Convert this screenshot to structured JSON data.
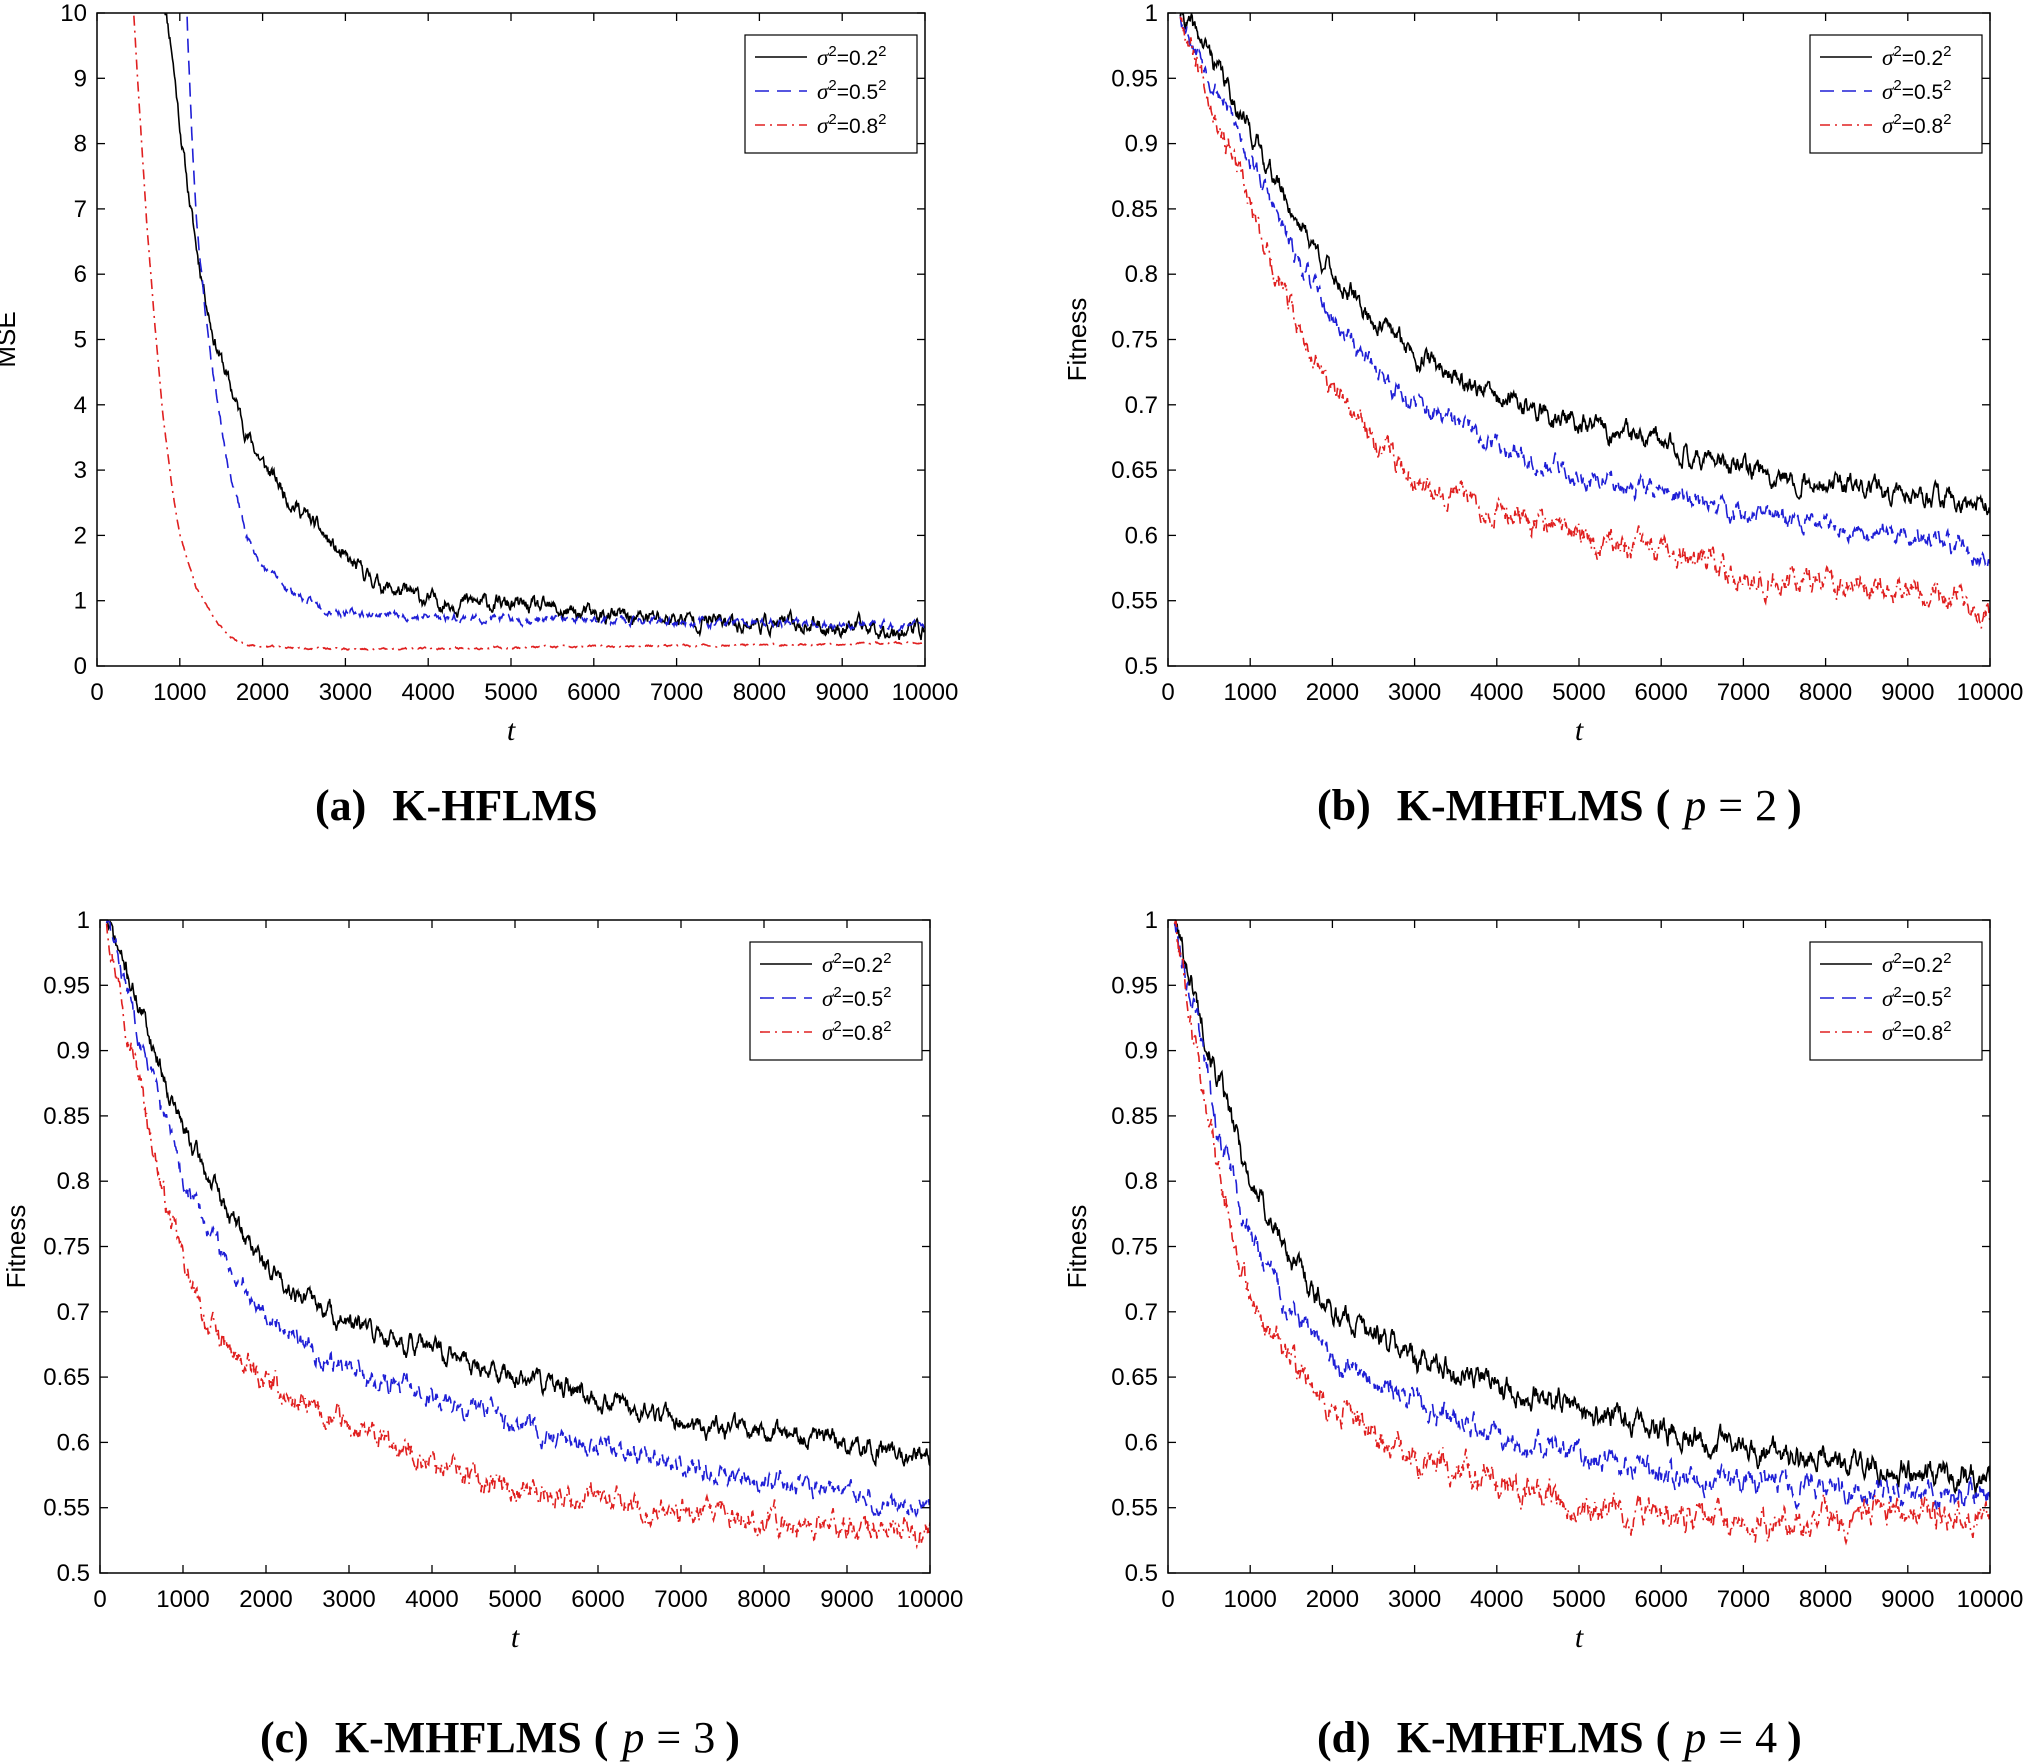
{
  "figure": {
    "legend_prefix": "σ",
    "legend_sup": "2",
    "legend_eq": "=",
    "sup2": "2"
  },
  "chart_data": [
    {
      "id": "a",
      "type": "line",
      "caption": {
        "label": "(a)",
        "name": "K-HFLMS",
        "p_var": "",
        "p_eq": "",
        "p_value": "",
        "open_paren": "",
        "close_paren": ""
      },
      "xlabel": "t",
      "ylabel": "MSE",
      "xlim": [
        0,
        10000
      ],
      "ylim": [
        0,
        10
      ],
      "xticks": [
        0,
        1000,
        2000,
        3000,
        4000,
        5000,
        6000,
        7000,
        8000,
        9000,
        10000
      ],
      "xtick_labels": [
        "0",
        "1000",
        "2000",
        "3000",
        "4000",
        "5000",
        "6000",
        "7000",
        "8000",
        "9000",
        "10000"
      ],
      "yticks": [
        0,
        1,
        2,
        3,
        4,
        5,
        6,
        7,
        8,
        9,
        10
      ],
      "ytick_labels": [
        "0",
        "1",
        "2",
        "3",
        "4",
        "5",
        "6",
        "7",
        "8",
        "9",
        "10"
      ],
      "legend_position": "top-right",
      "series": [
        {
          "name": "σ²=0.2²",
          "value_label": "0.2",
          "color": "#000000",
          "dash": "",
          "noise": 0.08,
          "seed": 11,
          "x": [
            800,
            900,
            1000,
            1100,
            1200,
            1400,
            1600,
            1800,
            2000,
            2300,
            2600,
            3000,
            3500,
            4000,
            4500,
            5000,
            6000,
            7000,
            8000,
            9000,
            10000
          ],
          "y": [
            10.3,
            9.5,
            8.3,
            7.3,
            6.4,
            5.1,
            4.3,
            3.6,
            3.1,
            2.6,
            2.2,
            1.6,
            1.2,
            1.0,
            0.97,
            0.93,
            0.77,
            0.72,
            0.65,
            0.6,
            0.55
          ]
        },
        {
          "name": "σ²=0.5²",
          "value_label": "0.5",
          "color": "#1f1fd6",
          "dash": "14 8",
          "noise": 0.04,
          "seed": 23,
          "x": [
            1080,
            1100,
            1150,
            1200,
            1300,
            1400,
            1500,
            1600,
            1800,
            2000,
            2300,
            2600,
            3000,
            4000,
            5000,
            6000,
            7000,
            8000,
            9000,
            10000
          ],
          "y": [
            10.3,
            9.5,
            8.0,
            6.9,
            5.5,
            4.5,
            3.7,
            3.0,
            2.0,
            1.5,
            1.2,
            0.95,
            0.82,
            0.75,
            0.72,
            0.7,
            0.68,
            0.65,
            0.63,
            0.62
          ]
        },
        {
          "name": "σ²=0.8²",
          "value_label": "0.8",
          "color": "#e02020",
          "dash": "10 5 2 5",
          "noise": 0.01,
          "seed": 37,
          "x": [
            430,
            500,
            600,
            700,
            800,
            900,
            1000,
            1200,
            1400,
            1600,
            1800,
            2000,
            2500,
            3000,
            3500,
            4000,
            5000,
            6000,
            7000,
            8000,
            9000,
            10000
          ],
          "y": [
            10.3,
            8.8,
            6.8,
            5.2,
            3.8,
            2.8,
            2.0,
            1.2,
            0.75,
            0.45,
            0.32,
            0.3,
            0.27,
            0.26,
            0.25,
            0.27,
            0.28,
            0.3,
            0.31,
            0.32,
            0.34,
            0.36
          ]
        }
      ]
    },
    {
      "id": "b",
      "type": "line",
      "caption": {
        "label": "(b)",
        "name": "K-MHFLMS",
        "p_var": "p",
        "p_eq": "=",
        "p_value": "2",
        "open_paren": "(",
        "close_paren": ")"
      },
      "xlabel": "t",
      "ylabel": "Fitness",
      "xlim": [
        0,
        10000
      ],
      "ylim": [
        0.5,
        1
      ],
      "xticks": [
        0,
        1000,
        2000,
        3000,
        4000,
        5000,
        6000,
        7000,
        8000,
        9000,
        10000
      ],
      "xtick_labels": [
        "0",
        "1000",
        "2000",
        "3000",
        "4000",
        "5000",
        "6000",
        "7000",
        "8000",
        "9000",
        "10000"
      ],
      "yticks": [
        0.5,
        0.55,
        0.6,
        0.65,
        0.7,
        0.75,
        0.8,
        0.85,
        0.9,
        0.95,
        1
      ],
      "ytick_labels": [
        "0.5",
        "0.55",
        "0.6",
        "0.65",
        "0.7",
        "0.75",
        "0.8",
        "0.85",
        "0.9",
        "0.95",
        "1"
      ],
      "legend_position": "top-right",
      "series": [
        {
          "name": "σ²=0.2²",
          "value_label": "0.2",
          "color": "#000000",
          "dash": "",
          "noise": 0.005,
          "seed": 41,
          "x": [
            150,
            500,
            1000,
            1500,
            2000,
            2500,
            3000,
            4000,
            5000,
            6000,
            7000,
            8000,
            9000,
            10000
          ],
          "y": [
            1.0,
            0.97,
            0.91,
            0.85,
            0.8,
            0.765,
            0.74,
            0.705,
            0.685,
            0.67,
            0.65,
            0.64,
            0.63,
            0.625
          ]
        },
        {
          "name": "σ²=0.5²",
          "value_label": "0.5",
          "color": "#1f1fd6",
          "dash": "14 8",
          "noise": 0.005,
          "seed": 53,
          "x": [
            150,
            500,
            1000,
            1500,
            2000,
            2500,
            3000,
            4000,
            5000,
            6000,
            7000,
            8000,
            9000,
            10000
          ],
          "y": [
            1.0,
            0.955,
            0.89,
            0.82,
            0.765,
            0.73,
            0.7,
            0.67,
            0.645,
            0.635,
            0.615,
            0.61,
            0.6,
            0.585
          ]
        },
        {
          "name": "σ²=0.8²",
          "value_label": "0.8",
          "color": "#e02020",
          "dash": "10 5 2 5",
          "noise": 0.006,
          "seed": 67,
          "x": [
            150,
            500,
            1000,
            1500,
            2000,
            2500,
            3000,
            4000,
            5000,
            6000,
            7000,
            8000,
            9000,
            10000
          ],
          "y": [
            1.0,
            0.94,
            0.85,
            0.77,
            0.71,
            0.675,
            0.645,
            0.62,
            0.6,
            0.585,
            0.57,
            0.565,
            0.56,
            0.545
          ]
        }
      ]
    },
    {
      "id": "c",
      "type": "line",
      "caption": {
        "label": "(c)",
        "name": "K-MHFLMS",
        "p_var": "p",
        "p_eq": "=",
        "p_value": "3",
        "open_paren": "(",
        "close_paren": ")"
      },
      "xlabel": "t",
      "ylabel": "Fitness",
      "xlim": [
        0,
        10000
      ],
      "ylim": [
        0.5,
        1
      ],
      "xticks": [
        0,
        1000,
        2000,
        3000,
        4000,
        5000,
        6000,
        7000,
        8000,
        9000,
        10000
      ],
      "xtick_labels": [
        "0",
        "1000",
        "2000",
        "3000",
        "4000",
        "5000",
        "6000",
        "7000",
        "8000",
        "9000",
        "10000"
      ],
      "yticks": [
        0.5,
        0.55,
        0.6,
        0.65,
        0.7,
        0.75,
        0.8,
        0.85,
        0.9,
        0.95,
        1
      ],
      "ytick_labels": [
        "0.5",
        "0.55",
        "0.6",
        "0.65",
        "0.7",
        "0.75",
        "0.8",
        "0.85",
        "0.9",
        "0.95",
        "1"
      ],
      "legend_position": "top-right",
      "series": [
        {
          "name": "σ²=0.2²",
          "value_label": "0.2",
          "color": "#000000",
          "dash": "",
          "noise": 0.005,
          "seed": 71,
          "x": [
            80,
            500,
            1000,
            1500,
            2000,
            2500,
            3000,
            4000,
            5000,
            6000,
            7000,
            8000,
            9000,
            10000
          ],
          "y": [
            1.0,
            0.93,
            0.84,
            0.78,
            0.735,
            0.71,
            0.69,
            0.67,
            0.65,
            0.635,
            0.615,
            0.605,
            0.6,
            0.59
          ]
        },
        {
          "name": "σ²=0.5²",
          "value_label": "0.5",
          "color": "#1f1fd6",
          "dash": "14 8",
          "noise": 0.005,
          "seed": 83,
          "x": [
            80,
            500,
            1000,
            1500,
            2000,
            2500,
            3000,
            4000,
            5000,
            6000,
            7000,
            8000,
            9000,
            10000
          ],
          "y": [
            1.0,
            0.91,
            0.8,
            0.74,
            0.7,
            0.675,
            0.655,
            0.635,
            0.615,
            0.595,
            0.58,
            0.57,
            0.56,
            0.55
          ]
        },
        {
          "name": "σ²=0.8²",
          "value_label": "0.8",
          "color": "#e02020",
          "dash": "10 5 2 5",
          "noise": 0.006,
          "seed": 97,
          "x": [
            80,
            400,
            800,
            1200,
            1600,
            2000,
            2500,
            3000,
            4000,
            5000,
            6000,
            7000,
            8000,
            9000,
            10000
          ],
          "y": [
            1.0,
            0.9,
            0.78,
            0.7,
            0.665,
            0.645,
            0.625,
            0.61,
            0.585,
            0.565,
            0.555,
            0.545,
            0.54,
            0.535,
            0.53
          ]
        }
      ]
    },
    {
      "id": "d",
      "type": "line",
      "caption": {
        "label": "(d)",
        "name": "K-MHFLMS",
        "p_var": "p",
        "p_eq": "=",
        "p_value": "4",
        "open_paren": "(",
        "close_paren": ")"
      },
      "xlabel": "t",
      "ylabel": "Fitness",
      "xlim": [
        0,
        10000
      ],
      "ylim": [
        0.5,
        1
      ],
      "xticks": [
        0,
        1000,
        2000,
        3000,
        4000,
        5000,
        6000,
        7000,
        8000,
        9000,
        10000
      ],
      "xtick_labels": [
        "0",
        "1000",
        "2000",
        "3000",
        "4000",
        "5000",
        "6000",
        "7000",
        "8000",
        "9000",
        "10000"
      ],
      "yticks": [
        0.5,
        0.55,
        0.6,
        0.65,
        0.7,
        0.75,
        0.8,
        0.85,
        0.9,
        0.95,
        1
      ],
      "ytick_labels": [
        "0.5",
        "0.55",
        "0.6",
        "0.65",
        "0.7",
        "0.75",
        "0.8",
        "0.85",
        "0.9",
        "0.95",
        "1"
      ],
      "legend_position": "top-right",
      "series": [
        {
          "name": "σ²=0.2²",
          "value_label": "0.2",
          "color": "#000000",
          "dash": "",
          "noise": 0.006,
          "seed": 101,
          "x": [
            80,
            300,
            600,
            1000,
            1500,
            2000,
            2500,
            3000,
            4000,
            5000,
            6000,
            7000,
            8000,
            9000,
            10000
          ],
          "y": [
            1.0,
            0.95,
            0.88,
            0.8,
            0.74,
            0.7,
            0.685,
            0.665,
            0.645,
            0.625,
            0.61,
            0.595,
            0.585,
            0.58,
            0.57
          ]
        },
        {
          "name": "σ²=0.5²",
          "value_label": "0.5",
          "color": "#1f1fd6",
          "dash": "14 8",
          "noise": 0.006,
          "seed": 113,
          "x": [
            80,
            300,
            600,
            1000,
            1500,
            2000,
            2500,
            3000,
            4000,
            5000,
            6000,
            7000,
            8000,
            9000,
            10000
          ],
          "y": [
            1.0,
            0.94,
            0.84,
            0.76,
            0.7,
            0.665,
            0.645,
            0.63,
            0.605,
            0.59,
            0.575,
            0.57,
            0.565,
            0.56,
            0.56
          ]
        },
        {
          "name": "σ²=0.8²",
          "value_label": "0.8",
          "color": "#e02020",
          "dash": "10 5 2 5",
          "noise": 0.007,
          "seed": 127,
          "x": [
            80,
            300,
            600,
            1000,
            1500,
            2000,
            2500,
            3000,
            4000,
            5000,
            6000,
            7000,
            8000,
            9000,
            10000
          ],
          "y": [
            1.0,
            0.92,
            0.81,
            0.71,
            0.66,
            0.625,
            0.605,
            0.59,
            0.57,
            0.55,
            0.545,
            0.535,
            0.54,
            0.545,
            0.54
          ]
        }
      ]
    }
  ]
}
